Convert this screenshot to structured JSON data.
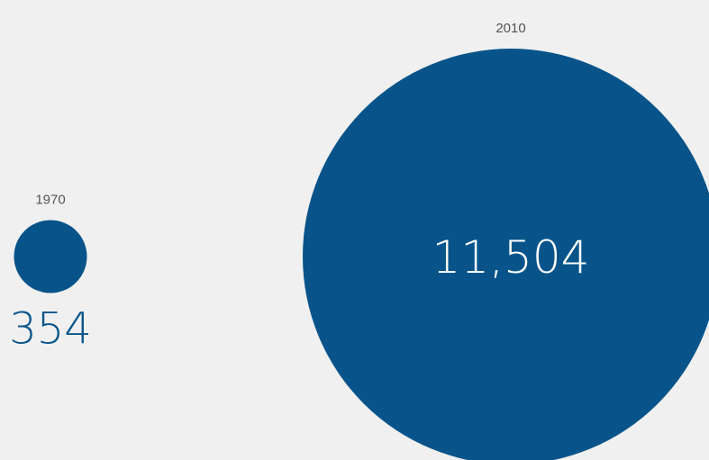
{
  "chart_data": {
    "type": "bubble",
    "title": "",
    "items": [
      {
        "year": "1970",
        "value": 354,
        "value_label": "354"
      },
      {
        "year": "2010",
        "value": 11504,
        "value_label": "11,504"
      }
    ],
    "colors": {
      "bubble": "#08548a",
      "value_outside": "#08548a",
      "value_inside": "#ffffff",
      "year_label": "#555555",
      "background": "#f0f0f0"
    }
  }
}
